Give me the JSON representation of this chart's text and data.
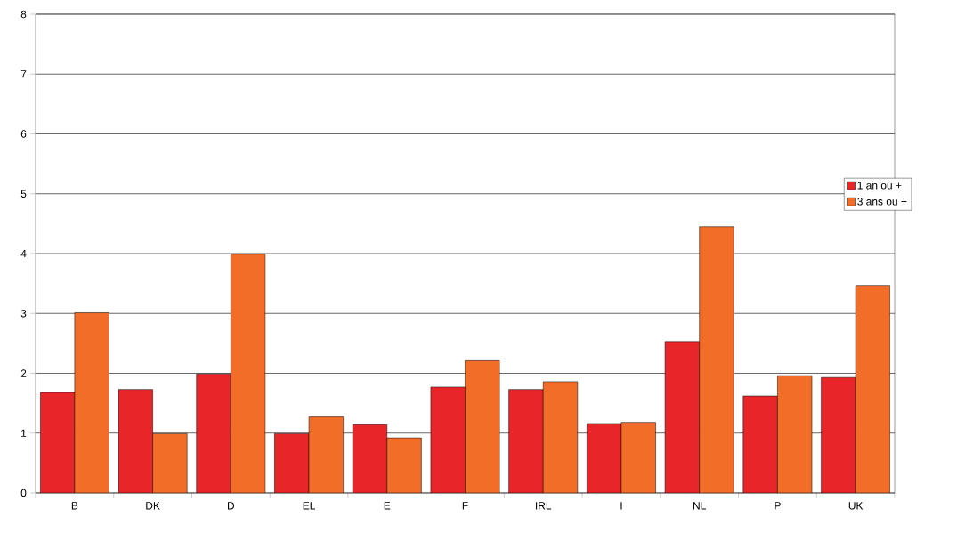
{
  "chart_data": {
    "type": "bar",
    "categories": [
      "B",
      "DK",
      "D",
      "EL",
      "E",
      "F",
      "IRL",
      "I",
      "NL",
      "P",
      "UK"
    ],
    "series": [
      {
        "name": "1 an ou +",
        "color": "#e8262a",
        "values": [
          1.68,
          1.73,
          1.99,
          0.99,
          1.14,
          1.77,
          1.73,
          1.16,
          2.53,
          1.62,
          1.93
        ]
      },
      {
        "name": "3 ans ou +",
        "color": "#f26d28",
        "values": [
          3.01,
          0.99,
          3.99,
          1.27,
          0.92,
          2.21,
          1.86,
          1.18,
          4.45,
          1.96,
          3.47
        ]
      }
    ],
    "ylim": [
      0,
      8
    ],
    "yticks": [
      0,
      1,
      2,
      3,
      4,
      5,
      6,
      7,
      8
    ],
    "grid": "y",
    "legend": "right"
  }
}
